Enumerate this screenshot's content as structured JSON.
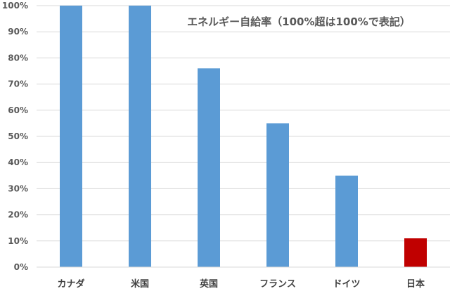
{
  "chart_data": {
    "type": "bar",
    "title": "エネルギー自給率（100%超は100%で表記）",
    "categories": [
      "カナダ",
      "米国",
      "英国",
      "フランス",
      "ドイツ",
      "日本"
    ],
    "values": [
      100,
      100,
      76,
      55,
      35,
      11
    ],
    "bar_colors": [
      "#5b9bd5",
      "#5b9bd5",
      "#5b9bd5",
      "#5b9bd5",
      "#5b9bd5",
      "#c00000"
    ],
    "ylim": [
      0,
      100
    ],
    "yticks": [
      "0%",
      "10%",
      "20%",
      "30%",
      "40%",
      "50%",
      "60%",
      "70%",
      "80%",
      "90%",
      "100%"
    ],
    "grid": true,
    "xlabel": "",
    "ylabel": ""
  }
}
